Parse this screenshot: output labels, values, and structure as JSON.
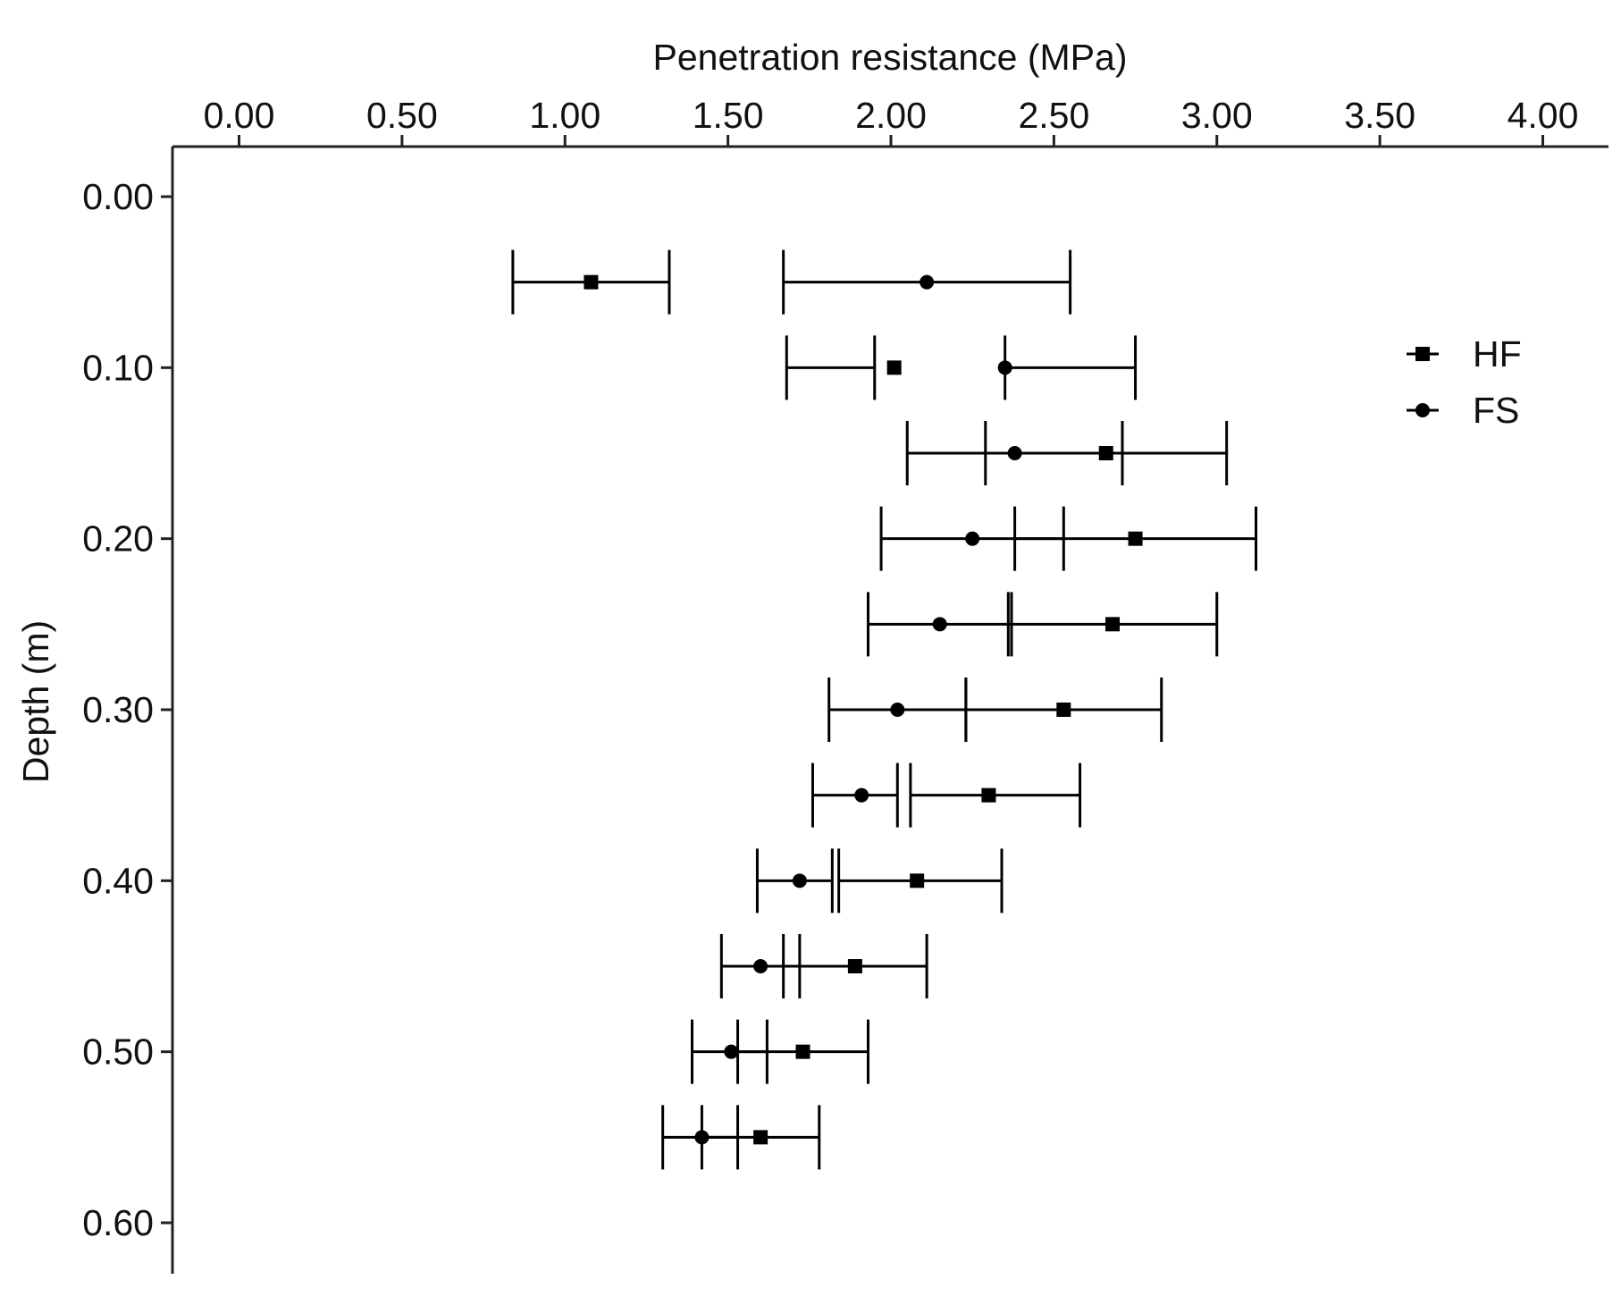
{
  "chart_data": {
    "type": "scatter",
    "title": "",
    "xlabel": "Penetration resistance (MPa)",
    "ylabel": "Depth (m)",
    "x_axis_position": "top",
    "y_axis_direction": "downward",
    "xlim": [
      -0.18,
      4.22
    ],
    "ylim": [
      0.0,
      0.63
    ],
    "xticks": [
      0.0,
      0.5,
      1.0,
      1.5,
      2.0,
      2.5,
      3.0,
      3.5,
      4.0
    ],
    "xtick_labels": [
      "0.00",
      "0.50",
      "1.00",
      "1.50",
      "2.00",
      "2.50",
      "3.00",
      "3.50",
      "4.00"
    ],
    "yticks": [
      0.0,
      0.1,
      0.2,
      0.3,
      0.4,
      0.5,
      0.6
    ],
    "ytick_labels": [
      "0.00",
      "0.10",
      "0.20",
      "0.30",
      "0.40",
      "0.50",
      "0.60"
    ],
    "grid": false,
    "legend_position": "top-right",
    "series": [
      {
        "name": "HF",
        "marker": "square",
        "points": [
          {
            "depth": 0.05,
            "x": 1.08,
            "err_low": 0.84,
            "err_high": 1.32
          },
          {
            "depth": 0.1,
            "x": 2.01,
            "err_low": 1.68,
            "err_high": 1.95
          },
          {
            "depth": 0.15,
            "x": 2.66,
            "err_low": 2.29,
            "err_high": 3.03
          },
          {
            "depth": 0.2,
            "x": 2.75,
            "err_low": 2.38,
            "err_high": 3.12
          },
          {
            "depth": 0.25,
            "x": 2.68,
            "err_low": 2.36,
            "err_high": 3.0
          },
          {
            "depth": 0.3,
            "x": 2.53,
            "err_low": 2.23,
            "err_high": 2.83
          },
          {
            "depth": 0.35,
            "x": 2.3,
            "err_low": 2.06,
            "err_high": 2.58
          },
          {
            "depth": 0.4,
            "x": 2.08,
            "err_low": 1.84,
            "err_high": 2.34
          },
          {
            "depth": 0.45,
            "x": 1.89,
            "err_low": 1.67,
            "err_high": 2.11
          },
          {
            "depth": 0.5,
            "x": 1.73,
            "err_low": 1.53,
            "err_high": 1.93
          },
          {
            "depth": 0.55,
            "x": 1.6,
            "err_low": 1.42,
            "err_high": 1.78
          }
        ]
      },
      {
        "name": "FS",
        "marker": "circle",
        "points": [
          {
            "depth": 0.05,
            "x": 2.11,
            "err_low": 1.67,
            "err_high": 2.55
          },
          {
            "depth": 0.1,
            "x": 2.35,
            "err_low": 2.35,
            "err_high": 2.75
          },
          {
            "depth": 0.15,
            "x": 2.38,
            "err_low": 2.05,
            "err_high": 2.71
          },
          {
            "depth": 0.2,
            "x": 2.25,
            "err_low": 1.97,
            "err_high": 2.53
          },
          {
            "depth": 0.25,
            "x": 2.15,
            "err_low": 1.93,
            "err_high": 2.37
          },
          {
            "depth": 0.3,
            "x": 2.02,
            "err_low": 1.81,
            "err_high": 2.23
          },
          {
            "depth": 0.35,
            "x": 1.91,
            "err_low": 1.76,
            "err_high": 2.02
          },
          {
            "depth": 0.4,
            "x": 1.72,
            "err_low": 1.59,
            "err_high": 1.82
          },
          {
            "depth": 0.45,
            "x": 1.6,
            "err_low": 1.48,
            "err_high": 1.72
          },
          {
            "depth": 0.5,
            "x": 1.51,
            "err_low": 1.39,
            "err_high": 1.62
          },
          {
            "depth": 0.55,
            "x": 1.42,
            "err_low": 1.3,
            "err_high": 1.53
          }
        ]
      }
    ]
  }
}
